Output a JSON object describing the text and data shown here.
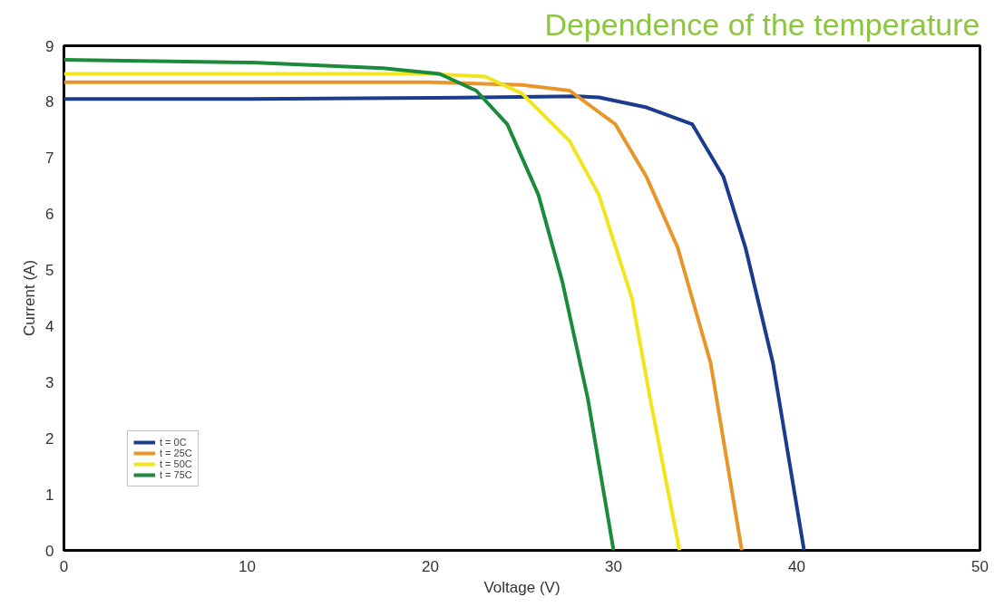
{
  "chart_data": {
    "type": "line",
    "title": "Dependence of the temperature",
    "xlabel": "Voltage (V)",
    "ylabel": "Current (A)",
    "xlim": [
      0,
      50
    ],
    "ylim": [
      0,
      9
    ],
    "xticks": [
      0,
      10,
      20,
      30,
      40,
      50
    ],
    "yticks": [
      0,
      1,
      2,
      3,
      4,
      5,
      6,
      7,
      8,
      9
    ],
    "grid": false,
    "legend": "bottom left",
    "marker": "none",
    "line_style": "solid",
    "series": [
      {
        "name": "t = 0C",
        "color": "#1a3c8f",
        "x": [
          0,
          10,
          20,
          28,
          29.2,
          31.8,
          34.3,
          36.0,
          37.2,
          38.7,
          40.4
        ],
        "values": [
          8.05,
          8.05,
          8.07,
          8.1,
          8.08,
          7.9,
          7.6,
          6.66,
          5.4,
          3.34,
          0
        ]
      },
      {
        "name": "t = 25C",
        "color": "#e8962a",
        "x": [
          0,
          10,
          20,
          25,
          27.6,
          30.1,
          31.8,
          33.5,
          35.3,
          37.0
        ],
        "values": [
          8.35,
          8.35,
          8.35,
          8.3,
          8.2,
          7.6,
          6.66,
          5.4,
          3.34,
          0
        ]
      },
      {
        "name": "t = 50C",
        "color": "#f2e51c",
        "x": [
          0,
          10,
          20,
          23,
          25.0,
          27.6,
          29.2,
          31.0,
          32.0,
          33.6
        ],
        "values": [
          8.5,
          8.5,
          8.5,
          8.45,
          8.15,
          7.3,
          6.34,
          4.5,
          2.7,
          0
        ]
      },
      {
        "name": "t = 75C",
        "color": "#1c8a3c",
        "x": [
          0,
          10.3,
          17.4,
          20.5,
          22.5,
          24.2,
          25.9,
          27.2,
          28.6,
          30.0
        ],
        "values": [
          8.75,
          8.7,
          8.6,
          8.5,
          8.2,
          7.6,
          6.34,
          4.8,
          2.7,
          0
        ]
      }
    ]
  }
}
